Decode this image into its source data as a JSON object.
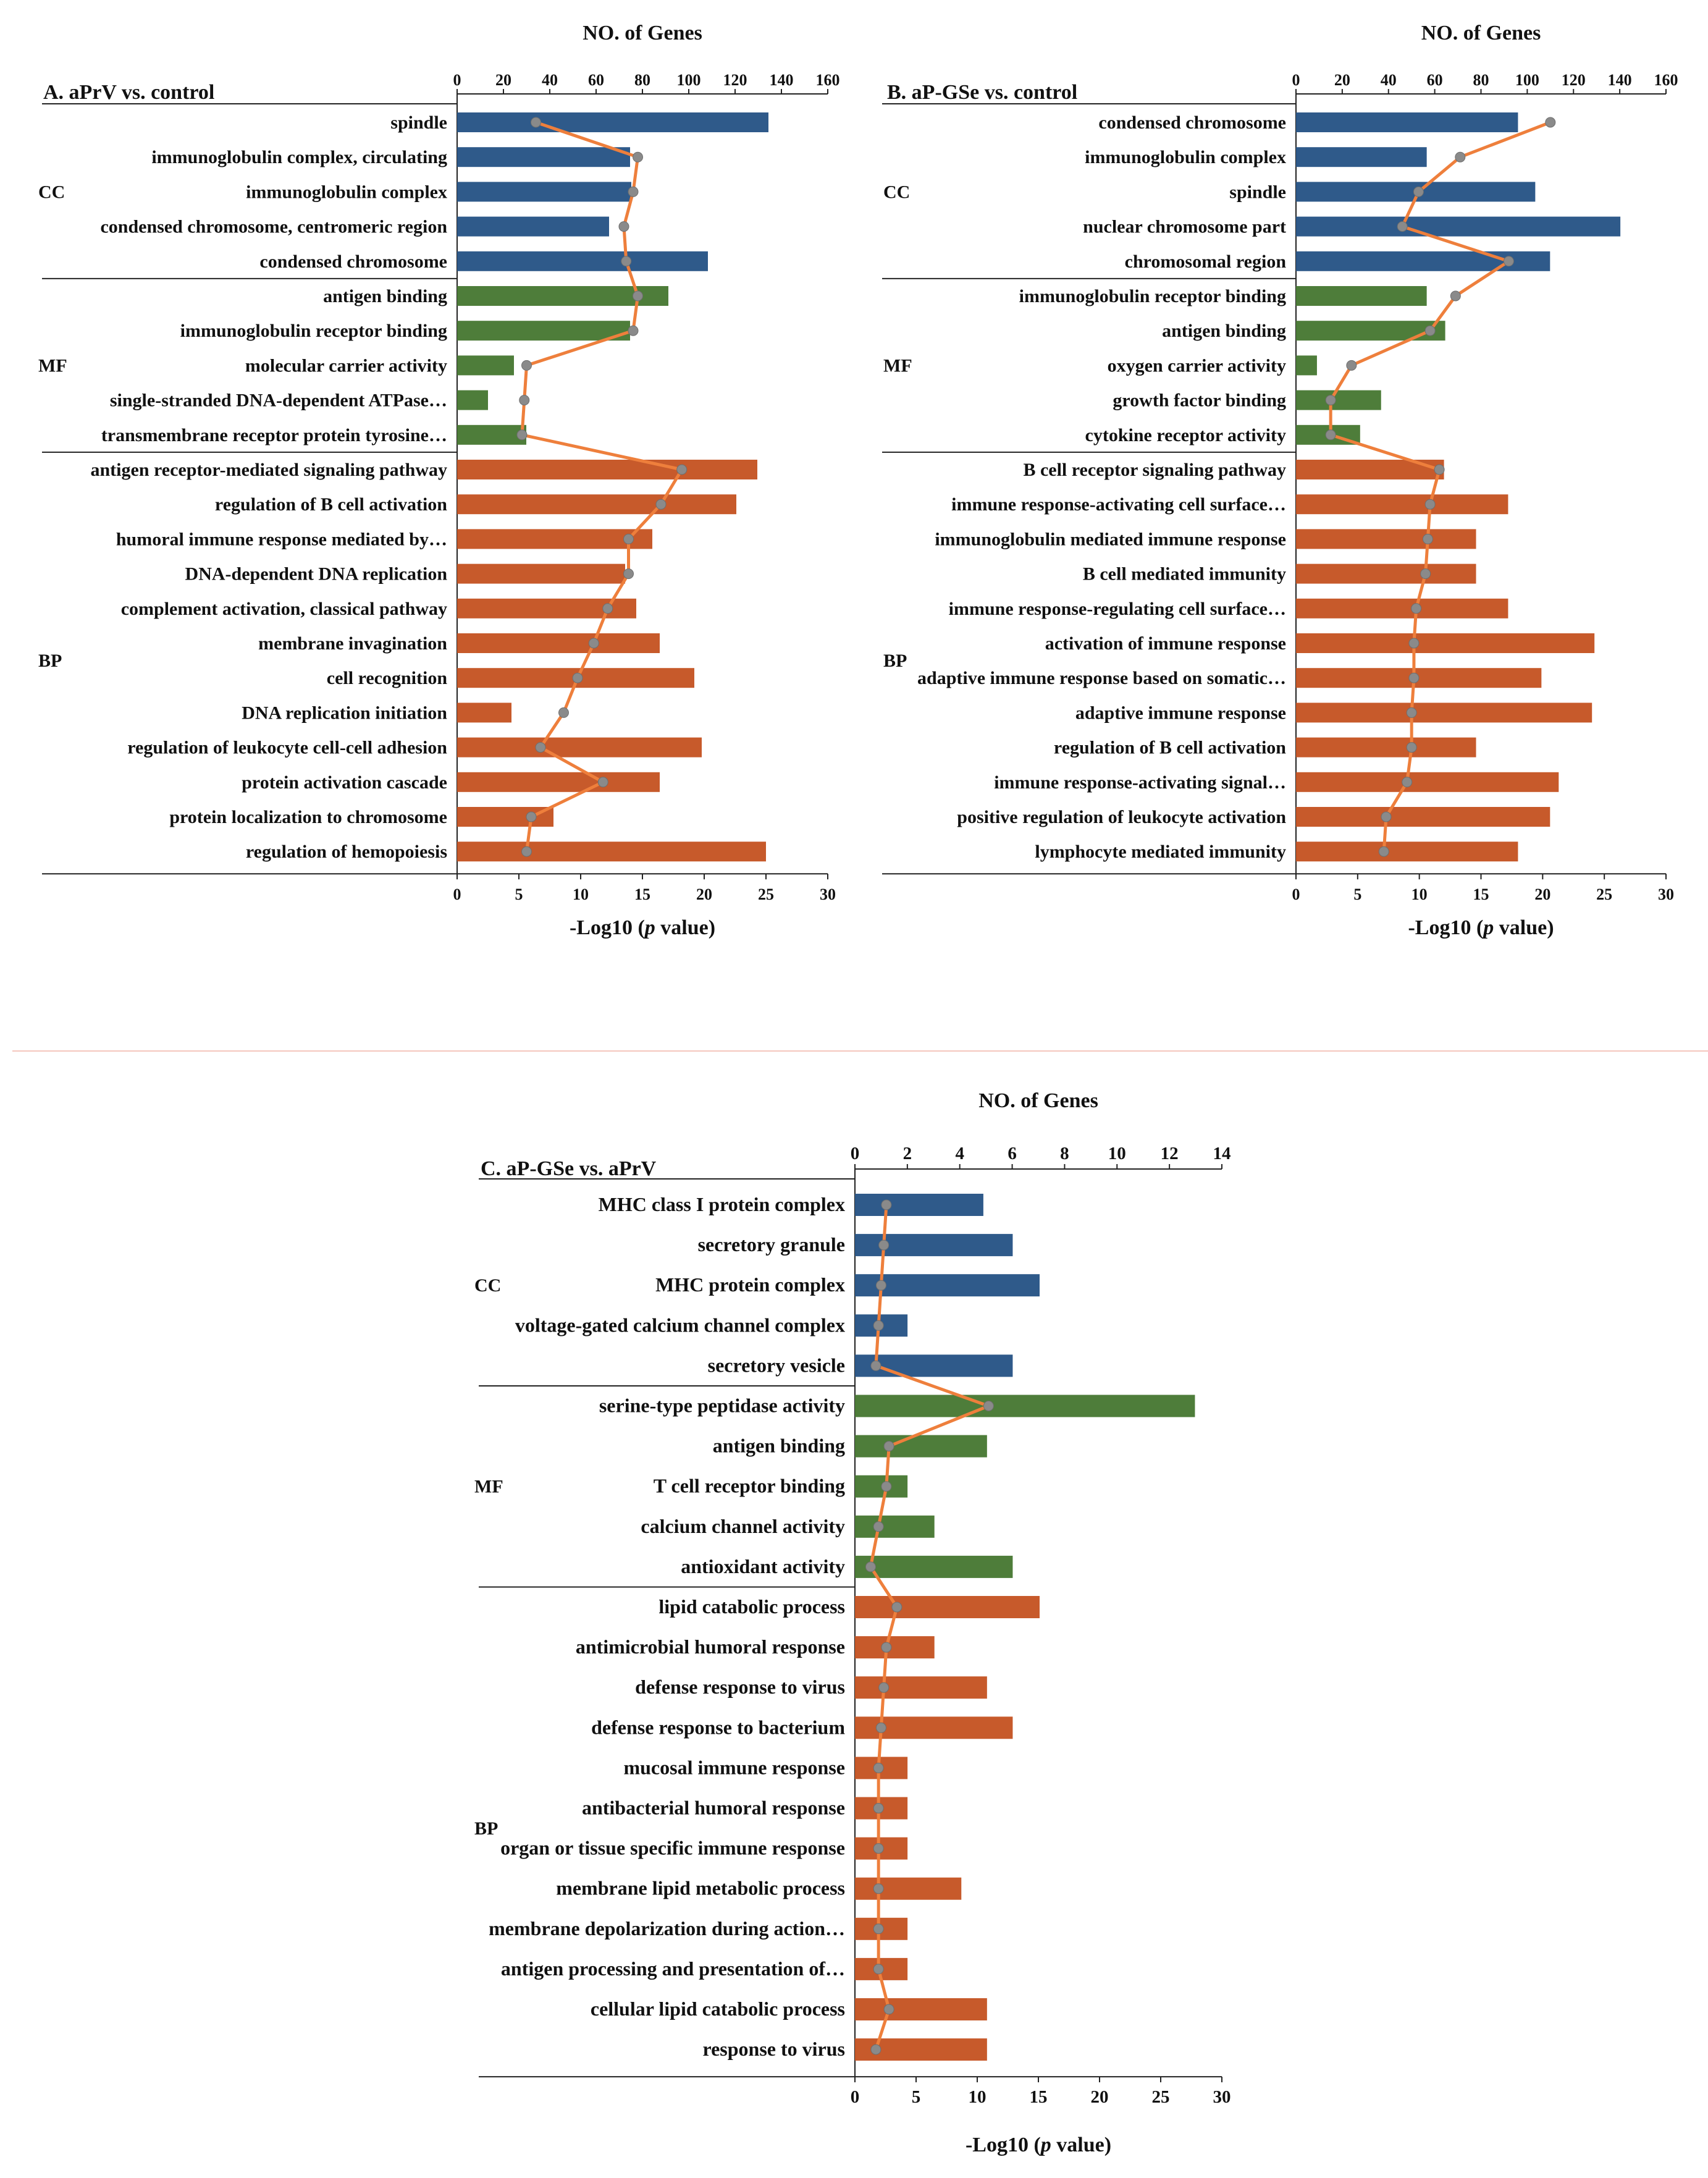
{
  "colors": {
    "cc": "#2f5a8a",
    "mf": "#4e7d3a",
    "bp": "#c75a2b",
    "line": "#ee7f3c",
    "marker": "#8a8a8a",
    "axis": "#222222"
  },
  "chart_data": [
    {
      "type": "bar",
      "title": "A. aPrV vs. control",
      "top_axis_title": "NO. of Genes",
      "bottom_axis_title": "-Log10 (p value)",
      "x_bottom": {
        "range": [
          0,
          30
        ],
        "ticks": [
          "0",
          "5",
          "10",
          "15",
          "20",
          "25",
          "30"
        ]
      },
      "x_top": {
        "range": [
          0,
          160
        ],
        "ticks": [
          "0",
          "20",
          "40",
          "60",
          "80",
          "100",
          "120",
          "140",
          "160"
        ]
      },
      "groups": [
        {
          "name": "CC",
          "terms": [
            {
              "label": "spindle",
              "log_p": 25.2,
              "genes": 34
            },
            {
              "label": "immunoglobulin complex, circulating",
              "log_p": 14.0,
              "genes": 78
            },
            {
              "label": "immunoglobulin complex",
              "log_p": 14.1,
              "genes": 76
            },
            {
              "label": "condensed chromosome, centromeric region",
              "log_p": 12.3,
              "genes": 72
            },
            {
              "label": "condensed chromosome",
              "log_p": 20.3,
              "genes": 73
            }
          ]
        },
        {
          "name": "MF",
          "terms": [
            {
              "label": "antigen binding",
              "log_p": 17.1,
              "genes": 78
            },
            {
              "label": "immunoglobulin receptor binding",
              "log_p": 14.0,
              "genes": 76
            },
            {
              "label": "molecular carrier activity",
              "log_p": 4.6,
              "genes": 30
            },
            {
              "label": "single-stranded DNA-dependent ATPase…",
              "log_p": 2.5,
              "genes": 29
            },
            {
              "label": "transmembrane receptor protein tyrosine…",
              "log_p": 5.6,
              "genes": 28
            }
          ]
        },
        {
          "name": "BP",
          "terms": [
            {
              "label": "antigen receptor-mediated signaling pathway",
              "log_p": 24.3,
              "genes": 97
            },
            {
              "label": "regulation of B cell activation",
              "log_p": 22.6,
              "genes": 88
            },
            {
              "label": "humoral immune response mediated by…",
              "log_p": 15.8,
              "genes": 74
            },
            {
              "label": "DNA-dependent DNA replication",
              "log_p": 13.6,
              "genes": 74
            },
            {
              "label": "complement activation, classical pathway",
              "log_p": 14.5,
              "genes": 65
            },
            {
              "label": "membrane invagination",
              "log_p": 16.4,
              "genes": 59
            },
            {
              "label": "cell recognition",
              "log_p": 19.2,
              "genes": 52
            },
            {
              "label": "DNA replication initiation",
              "log_p": 4.4,
              "genes": 46
            },
            {
              "label": "regulation of leukocyte cell-cell adhesion",
              "log_p": 19.8,
              "genes": 36
            },
            {
              "label": "protein activation cascade",
              "log_p": 16.4,
              "genes": 63
            },
            {
              "label": "protein localization to chromosome",
              "log_p": 7.8,
              "genes": 32
            },
            {
              "label": "regulation of hemopoiesis",
              "log_p": 25.0,
              "genes": 30
            }
          ]
        }
      ]
    },
    {
      "type": "bar",
      "title": "B. aP-GSe vs. control",
      "top_axis_title": "NO. of Genes",
      "bottom_axis_title": "-Log10 (p value)",
      "x_bottom": {
        "range": [
          0,
          30
        ],
        "ticks": [
          "0",
          "5",
          "10",
          "15",
          "20",
          "25",
          "30"
        ]
      },
      "x_top": {
        "range": [
          0,
          160
        ],
        "ticks": [
          "0",
          "20",
          "40",
          "60",
          "80",
          "100",
          "120",
          "140",
          "160"
        ]
      },
      "groups": [
        {
          "name": "CC",
          "terms": [
            {
              "label": "condensed chromosome",
              "log_p": 18.0,
              "genes": 110
            },
            {
              "label": "immunoglobulin complex",
              "log_p": 10.6,
              "genes": 71
            },
            {
              "label": "spindle",
              "log_p": 19.4,
              "genes": 53
            },
            {
              "label": "nuclear chromosome part",
              "log_p": 26.3,
              "genes": 46
            },
            {
              "label": "chromosomal region",
              "log_p": 20.6,
              "genes": 92
            }
          ]
        },
        {
          "name": "MF",
          "terms": [
            {
              "label": "immunoglobulin receptor binding",
              "log_p": 10.6,
              "genes": 69
            },
            {
              "label": "antigen binding",
              "log_p": 12.1,
              "genes": 58
            },
            {
              "label": "oxygen carrier activity",
              "log_p": 1.7,
              "genes": 24
            },
            {
              "label": "growth factor binding",
              "log_p": 6.9,
              "genes": 15
            },
            {
              "label": "cytokine receptor activity",
              "log_p": 5.2,
              "genes": 15
            }
          ]
        },
        {
          "name": "BP",
          "terms": [
            {
              "label": "B cell receptor signaling pathway",
              "log_p": 12.0,
              "genes": 62
            },
            {
              "label": "immune response-activating cell surface…",
              "log_p": 17.2,
              "genes": 58
            },
            {
              "label": "immunoglobulin mediated immune response",
              "log_p": 14.6,
              "genes": 57
            },
            {
              "label": "B cell mediated immunity",
              "log_p": 14.6,
              "genes": 56
            },
            {
              "label": "immune response-regulating cell surface…",
              "log_p": 17.2,
              "genes": 52
            },
            {
              "label": "activation of immune response",
              "log_p": 24.2,
              "genes": 51
            },
            {
              "label": "adaptive immune response based on somatic…",
              "log_p": 19.9,
              "genes": 51
            },
            {
              "label": "adaptive immune response",
              "log_p": 24.0,
              "genes": 50
            },
            {
              "label": "regulation of B cell activation",
              "log_p": 14.6,
              "genes": 50
            },
            {
              "label": "immune response-activating signal…",
              "log_p": 21.3,
              "genes": 48
            },
            {
              "label": "positive regulation of leukocyte activation",
              "log_p": 20.6,
              "genes": 39
            },
            {
              "label": "lymphocyte mediated immunity",
              "log_p": 18.0,
              "genes": 38
            }
          ]
        }
      ]
    },
    {
      "type": "bar",
      "title": "C. aP-GSe vs. aPrV",
      "top_axis_title": "NO. of Genes",
      "bottom_axis_title": "-Log10 (p value)",
      "x_bottom": {
        "range": [
          0,
          30
        ],
        "ticks": [
          "0",
          "5",
          "10",
          "15",
          "20",
          "25",
          "30"
        ]
      },
      "x_top": {
        "range": [
          0,
          14
        ],
        "ticks": [
          "0",
          "2",
          "4",
          "6",
          "8",
          "10",
          "12",
          "14"
        ]
      },
      "groups": [
        {
          "name": "CC",
          "terms": [
            {
              "label": "MHC class I protein complex",
              "log_p": 10.5,
              "genes": 1.2
            },
            {
              "label": "secretory granule",
              "log_p": 12.9,
              "genes": 1.1
            },
            {
              "label": "MHC protein complex",
              "log_p": 15.1,
              "genes": 1.0
            },
            {
              "label": "voltage-gated calcium channel complex",
              "log_p": 4.3,
              "genes": 0.9
            },
            {
              "label": "secretory vesicle",
              "log_p": 12.9,
              "genes": 0.8
            }
          ]
        },
        {
          "name": "MF",
          "terms": [
            {
              "label": "serine-type peptidase activity",
              "log_p": 27.8,
              "genes": 5.1
            },
            {
              "label": "antigen binding",
              "log_p": 10.8,
              "genes": 1.3
            },
            {
              "label": "T cell receptor binding",
              "log_p": 4.3,
              "genes": 1.2
            },
            {
              "label": "calcium channel activity",
              "log_p": 6.5,
              "genes": 0.9
            },
            {
              "label": "antioxidant activity",
              "log_p": 12.9,
              "genes": 0.6
            }
          ]
        },
        {
          "name": "BP",
          "terms": [
            {
              "label": "lipid catabolic process",
              "log_p": 15.1,
              "genes": 1.6
            },
            {
              "label": "antimicrobial humoral response",
              "log_p": 6.5,
              "genes": 1.2
            },
            {
              "label": "defense response to virus",
              "log_p": 10.8,
              "genes": 1.1
            },
            {
              "label": "defense response to bacterium",
              "log_p": 12.9,
              "genes": 1.0
            },
            {
              "label": "mucosal immune response",
              "log_p": 4.3,
              "genes": 0.9
            },
            {
              "label": "antibacterial humoral response",
              "log_p": 4.3,
              "genes": 0.9
            },
            {
              "label": "organ or tissue specific immune response",
              "log_p": 4.3,
              "genes": 0.9
            },
            {
              "label": "membrane lipid metabolic process",
              "log_p": 8.7,
              "genes": 0.9
            },
            {
              "label": "membrane depolarization during action…",
              "log_p": 4.3,
              "genes": 0.9
            },
            {
              "label": "antigen processing and presentation of…",
              "log_p": 4.3,
              "genes": 0.9
            },
            {
              "label": "cellular lipid catabolic process",
              "log_p": 10.8,
              "genes": 1.3
            },
            {
              "label": "response to virus",
              "log_p": 10.8,
              "genes": 0.8
            }
          ]
        }
      ]
    }
  ]
}
